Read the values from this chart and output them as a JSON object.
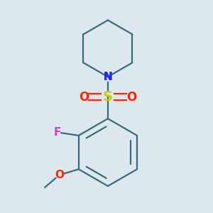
{
  "background_color": "#dde8ee",
  "bond_color": "#3a6b7a",
  "N_color": "#2222ff",
  "S_color": "#cccc00",
  "O_color": "#ff2200",
  "F_color": "#cc44bb",
  "lw": 1.6,
  "figsize": [
    3.0,
    3.0
  ],
  "dpi": 100,
  "xlim": [
    -1.3,
    1.3
  ],
  "ylim": [
    -1.55,
    1.55
  ]
}
